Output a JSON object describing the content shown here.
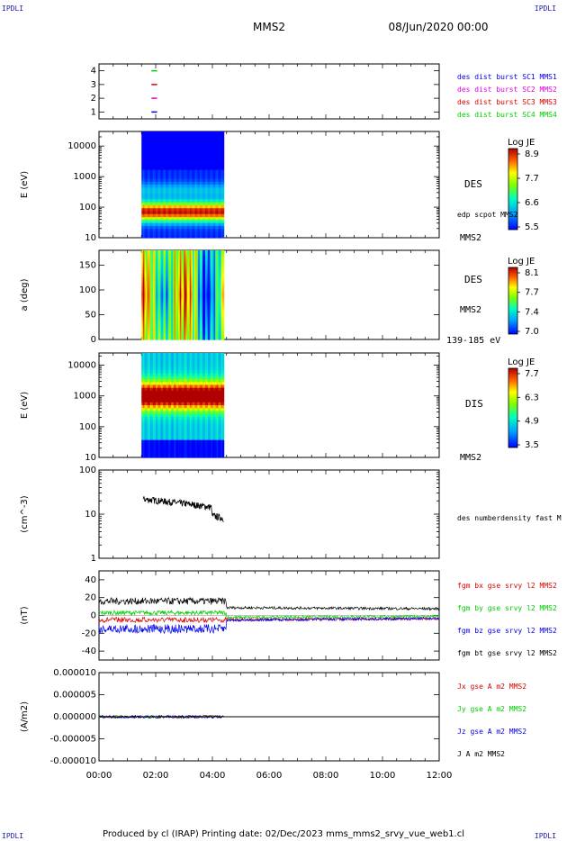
{
  "corners": {
    "label": "IPDLI"
  },
  "header": {
    "title": "MMS2",
    "date": "08/Jun/2020 00:00"
  },
  "footer": "Produced by cl (IRAP)   Printing date: 02/Dec/2023   mms_mms2_srvy_vue_web1.cl",
  "colors": {
    "red": "#dd0000",
    "green": "#00cc00",
    "blue": "#0000ee",
    "magenta": "#dd00dd",
    "black": "#000000"
  },
  "x_axis": {
    "ticks": [
      "00:00",
      "02:00",
      "04:00",
      "06:00",
      "08:00",
      "10:00",
      "12:00"
    ],
    "range_hours": [
      0,
      12
    ]
  },
  "chart_data": [
    {
      "type": "scatter",
      "panel": "burst",
      "ylim": [
        0.5,
        4.5
      ],
      "yticks": [
        "1",
        "2",
        "3",
        "4"
      ],
      "legend": [
        {
          "label": "des dist burst SC1 MMS1",
          "color": "#0000ee",
          "y": 1
        },
        {
          "label": "des dist burst SC2 MMS2",
          "color": "#dd00dd",
          "y": 2
        },
        {
          "label": "des dist burst SC3 MMS3",
          "color": "#dd0000",
          "y": 3
        },
        {
          "label": "des dist burst SC4 MMS4",
          "color": "#00cc00",
          "y": 4
        }
      ],
      "x_hours": [
        1.85,
        2.05
      ]
    },
    {
      "type": "heatmap",
      "panel": "des-energy",
      "ylabel": "E (eV)",
      "scale": "log",
      "yticks": [
        "10",
        "100",
        "1000",
        "10000"
      ],
      "ylim": [
        10,
        30000
      ],
      "x_range_hours": [
        1.5,
        4.4
      ],
      "right_labels": [
        "DES",
        "edp scpot MMS2",
        "MMS2"
      ],
      "colorbar": {
        "title": "Log JE",
        "ticks": [
          "8.9",
          "7.7",
          "6.6",
          "5.5"
        ],
        "range": [
          5.5,
          8.9
        ]
      }
    },
    {
      "type": "heatmap",
      "panel": "des-pitch",
      "ylabel": "a (deg)",
      "yticks": [
        "0",
        "50",
        "100",
        "150"
      ],
      "ylim": [
        0,
        180
      ],
      "x_range_hours": [
        1.5,
        4.4
      ],
      "right_labels": [
        "DES",
        "MMS2",
        "139-185 eV"
      ],
      "colorbar": {
        "title": "Log JE",
        "ticks": [
          "8.1",
          "7.7",
          "7.4",
          "7.0"
        ],
        "range": [
          7.0,
          8.1
        ]
      }
    },
    {
      "type": "heatmap",
      "panel": "dis-energy",
      "ylabel": "E (eV)",
      "scale": "log",
      "yticks": [
        "10",
        "100",
        "1000",
        "10000"
      ],
      "ylim": [
        10,
        25000
      ],
      "x_range_hours": [
        1.5,
        4.4
      ],
      "right_labels": [
        "DIS",
        "MMS2"
      ],
      "colorbar": {
        "title": "Log JE",
        "ticks": [
          "7.7",
          "6.3",
          "4.9",
          "3.5"
        ],
        "range": [
          3.5,
          7.7
        ]
      }
    },
    {
      "type": "line",
      "panel": "density",
      "ylabel": "(cm^-3)",
      "scale": "log",
      "yticks": [
        "1",
        "10",
        "100"
      ],
      "ylim": [
        1,
        100
      ],
      "x_range_hours": [
        1.55,
        4.4
      ],
      "series": [
        {
          "name": "des numberdensity fast M",
          "color": "#000000"
        }
      ]
    },
    {
      "type": "line",
      "panel": "fgm",
      "ylabel": "(nT)",
      "yticks": [
        "40",
        "20",
        "0",
        "-20",
        "-40"
      ],
      "ylim": [
        -50,
        50
      ],
      "x_range_hours": [
        0,
        12
      ],
      "series": [
        {
          "name": "fgm bx gse srvy l2 MMS2",
          "color": "#dd0000"
        },
        {
          "name": "fgm by gse srvy l2 MMS2",
          "color": "#00cc00"
        },
        {
          "name": "fgm bz gse srvy l2 MMS2",
          "color": "#0000ee"
        },
        {
          "name": "fgm bt gse srvy l2 MMS2",
          "color": "#000000"
        }
      ]
    },
    {
      "type": "line",
      "panel": "current",
      "ylabel": "(A/m2)",
      "yticks": [
        "0.000010",
        "0.000005",
        "0.000000",
        "-0.000005",
        "-0.000010"
      ],
      "ylim": [
        -1e-05,
        1e-05
      ],
      "x_range_hours": [
        0,
        4.4
      ],
      "series": [
        {
          "name": "Jx gse A m2 MMS2",
          "color": "#dd0000"
        },
        {
          "name": "Jy gse A m2 MMS2",
          "color": "#00cc00"
        },
        {
          "name": "Jz gse A m2 MMS2",
          "color": "#0000ee"
        },
        {
          "name": "J A m2 MMS2",
          "color": "#000000"
        }
      ]
    }
  ]
}
